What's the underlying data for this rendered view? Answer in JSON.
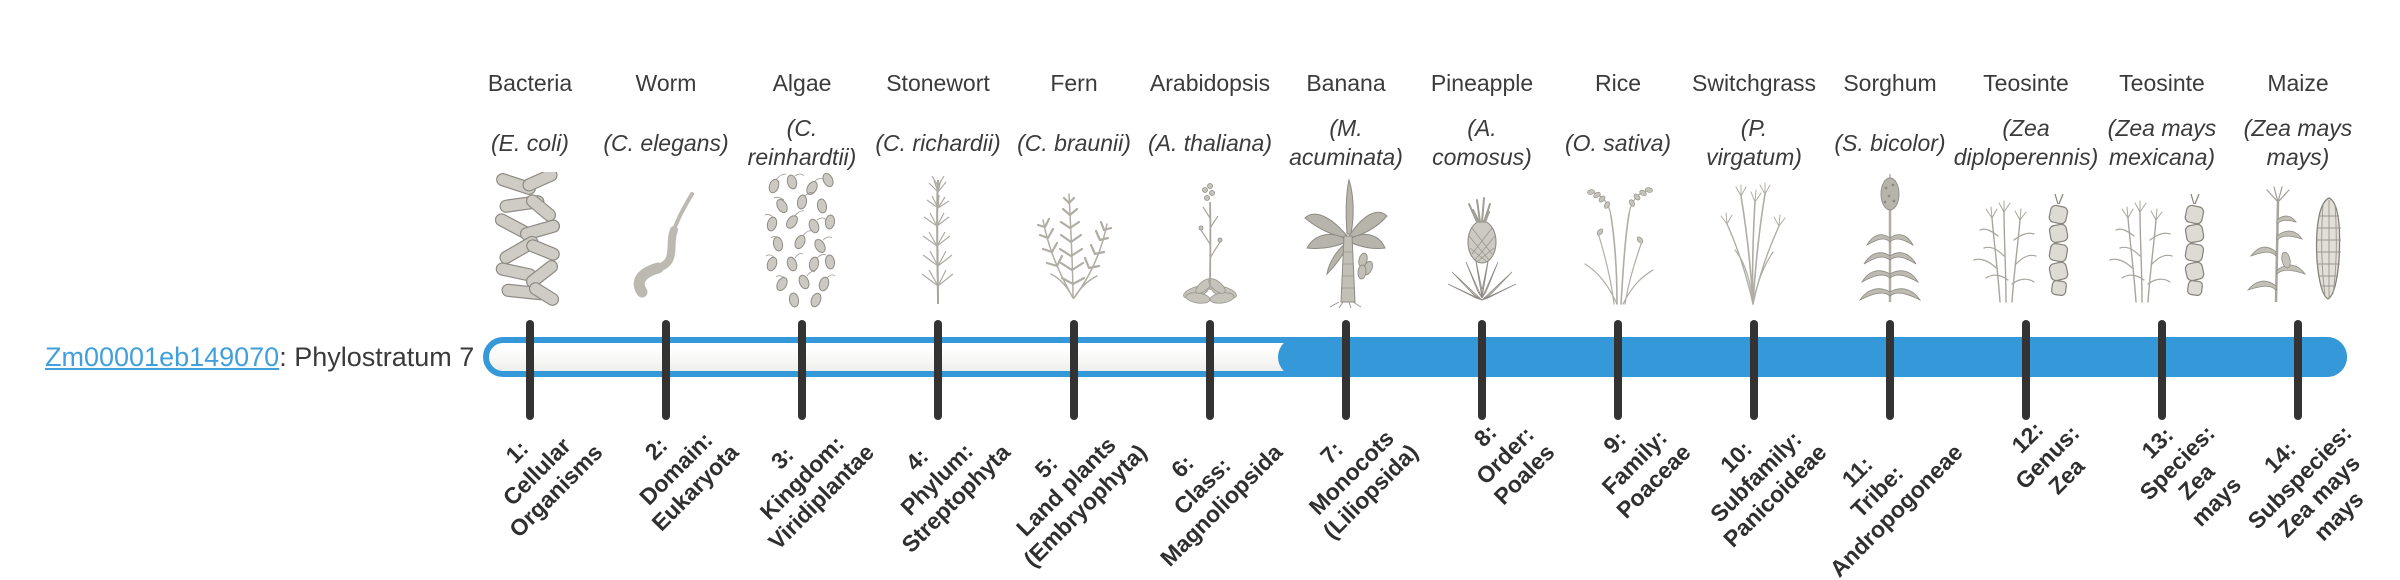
{
  "gene": {
    "id": "Zm00001eb149070",
    "label_suffix": ": Phylostratum 7",
    "phylostratum": 7,
    "filled_from_stratum": 7,
    "total_strata": 14
  },
  "colors": {
    "bar_blue": "#3598d8",
    "link_blue": "#41a0dc",
    "tick_color": "#333333",
    "text_color": "#3b3b3b"
  },
  "organisms": [
    {
      "name": "Bacteria",
      "sci": "(E. coli)",
      "icon": "bacteria",
      "stratum_label": "1:\nCellular\nOrganisms"
    },
    {
      "name": "Worm",
      "sci": "(C. elegans)",
      "icon": "worm",
      "stratum_label": "2:\nDomain:\nEukaryota"
    },
    {
      "name": "Algae",
      "sci": "(C.\nreinhardtii)",
      "icon": "algae",
      "stratum_label": "3:\nKingdom:\nViridiplantae"
    },
    {
      "name": "Stonewort",
      "sci": "(C. richardii)",
      "icon": "stonewort",
      "stratum_label": "4:\nPhylum:\nStreptophyta"
    },
    {
      "name": "Fern",
      "sci": "(C. braunii)",
      "icon": "fern",
      "stratum_label": "5:\nLand plants\n(Embryophyta)"
    },
    {
      "name": "Arabidopsis",
      "sci": "(A. thaliana)",
      "icon": "arabidopsis",
      "stratum_label": "6:\nClass:\nMagnoliopsida"
    },
    {
      "name": "Banana",
      "sci": "(M.\nacuminata)",
      "icon": "banana",
      "stratum_label": "7:\nMonocots\n(Liliopsida)"
    },
    {
      "name": "Pineapple",
      "sci": "(A.\ncomosus)",
      "icon": "pineapple",
      "stratum_label": "8:\nOrder:\nPoales"
    },
    {
      "name": "Rice",
      "sci": "(O. sativa)",
      "icon": "rice",
      "stratum_label": "9:\nFamily:\nPoaceae"
    },
    {
      "name": "Switchgrass",
      "sci": "(P.\nvirgatum)",
      "icon": "switchgrass",
      "stratum_label": "10:\nSubfamily:\nPanicoideae"
    },
    {
      "name": "Sorghum",
      "sci": "(S. bicolor)",
      "icon": "sorghum",
      "stratum_label": "11:\nTribe:\nAndropogoneae"
    },
    {
      "name": "Teosinte",
      "sci": "(Zea\ndiploperennis)",
      "icon": "teosinte",
      "stratum_label": "12:\nGenus:\nZea"
    },
    {
      "name": "Teosinte",
      "sci": "(Zea mays\nmexicana)",
      "icon": "teosinte",
      "stratum_label": "13:\nSpecies:\nZea\nmays"
    },
    {
      "name": "Maize",
      "sci": "(Zea mays\nmays)",
      "icon": "maize",
      "stratum_label": "14:\nSubspecies:\nZea mays\nmays"
    }
  ]
}
